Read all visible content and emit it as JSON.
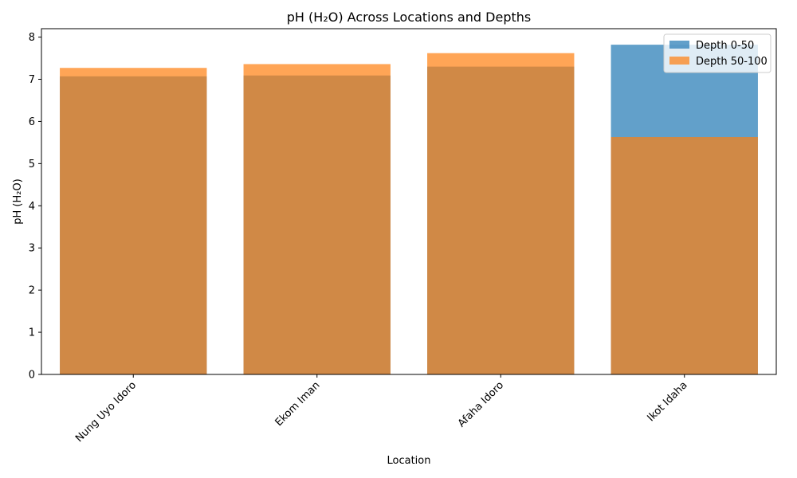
{
  "chart_data": {
    "type": "bar",
    "title": "pH (H₂O) Across Locations and Depths",
    "xlabel": "Location",
    "ylabel": "pH (H₂O)",
    "categories": [
      "Nung Uyo Idoro",
      "Ekom Iman",
      "Afaha Idoro",
      "Ikot Idaha"
    ],
    "series": [
      {
        "name": "Depth 0-50",
        "color": "#1f77b4",
        "values": [
          7.07,
          7.09,
          7.3,
          7.82
        ]
      },
      {
        "name": "Depth 50-100",
        "color": "#ff7f0e",
        "values": [
          7.27,
          7.36,
          7.62,
          5.63
        ]
      }
    ],
    "ylim": [
      0,
      8.2
    ],
    "yticks": [
      0,
      1,
      2,
      3,
      4,
      5,
      6,
      7,
      8
    ],
    "legend": "top-right",
    "grid": false
  }
}
